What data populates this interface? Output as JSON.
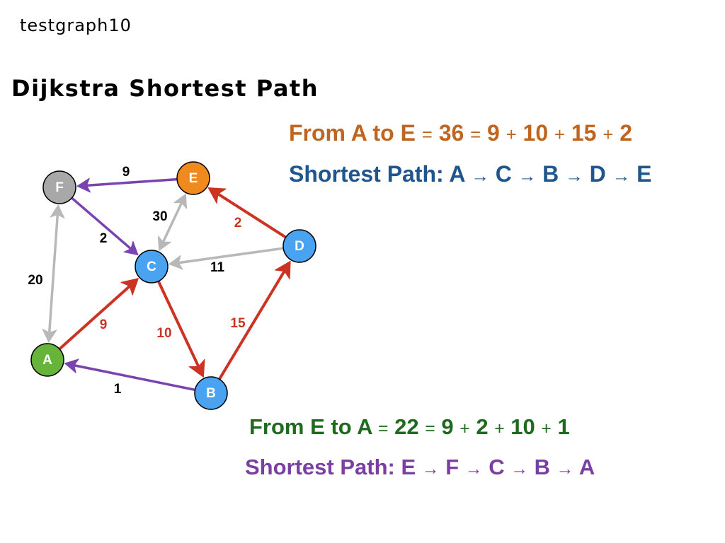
{
  "caption": "testgraph10",
  "title": "Dijkstra Shortest Path",
  "colors": {
    "orange_text": "#c0651f",
    "blue_text": "#1f568e",
    "green_text": "#1e6b1e",
    "purple_text": "#7a3fa3",
    "edge_red": "#cc3322",
    "edge_purple": "#7a44b0",
    "edge_gray": "#b8b8b8",
    "node_blue": "#4aa3f0",
    "node_orange": "#f08a1e",
    "node_gray": "#a8a8a8",
    "node_green": "#66b43a"
  },
  "forward": {
    "cost_parts": [
      "From A to E",
      "=",
      "36",
      "=",
      "9",
      "+",
      "10",
      "+",
      "15",
      "+",
      "2"
    ],
    "path_label": "Shortest Path:",
    "path_parts": [
      "A",
      "→",
      "C",
      "→",
      "B",
      "→",
      "D",
      "→",
      "E"
    ]
  },
  "reverse": {
    "cost_parts": [
      "From E to A",
      "=",
      "22",
      "=",
      "9",
      "+",
      "2",
      "+",
      "10",
      "+",
      "1"
    ],
    "path_label": "Shortest Path:",
    "path_parts": [
      "E",
      "→",
      "F",
      "→",
      "C",
      "→",
      "B",
      "→",
      "A"
    ]
  },
  "graph": {
    "nodes": [
      {
        "id": "F",
        "color": "node_gray"
      },
      {
        "id": "E",
        "color": "node_orange"
      },
      {
        "id": "D",
        "color": "node_blue"
      },
      {
        "id": "C",
        "color": "node_blue"
      },
      {
        "id": "A",
        "color": "node_green"
      },
      {
        "id": "B",
        "color": "node_blue"
      }
    ],
    "edges": [
      {
        "from": "E",
        "to": "F",
        "weight": "9",
        "style": "purple",
        "bidirectional": false
      },
      {
        "from": "F",
        "to": "C",
        "weight": "2",
        "style": "purple",
        "bidirectional": false
      },
      {
        "from": "C",
        "to": "E",
        "weight": "30",
        "style": "gray",
        "bidirectional": true
      },
      {
        "from": "D",
        "to": "E",
        "weight": "2",
        "style": "red",
        "bidirectional": false
      },
      {
        "from": "D",
        "to": "C",
        "weight": "11",
        "style": "gray",
        "bidirectional": false
      },
      {
        "from": "F",
        "to": "A",
        "weight": "20",
        "style": "gray",
        "bidirectional": true
      },
      {
        "from": "A",
        "to": "C",
        "weight": "9",
        "style": "red",
        "bidirectional": false
      },
      {
        "from": "C",
        "to": "B",
        "weight": "10",
        "style": "red",
        "bidirectional": false
      },
      {
        "from": "B",
        "to": "D",
        "weight": "15",
        "style": "red",
        "bidirectional": false
      },
      {
        "from": "B",
        "to": "A",
        "weight": "1",
        "style": "purple",
        "bidirectional": false
      }
    ]
  }
}
